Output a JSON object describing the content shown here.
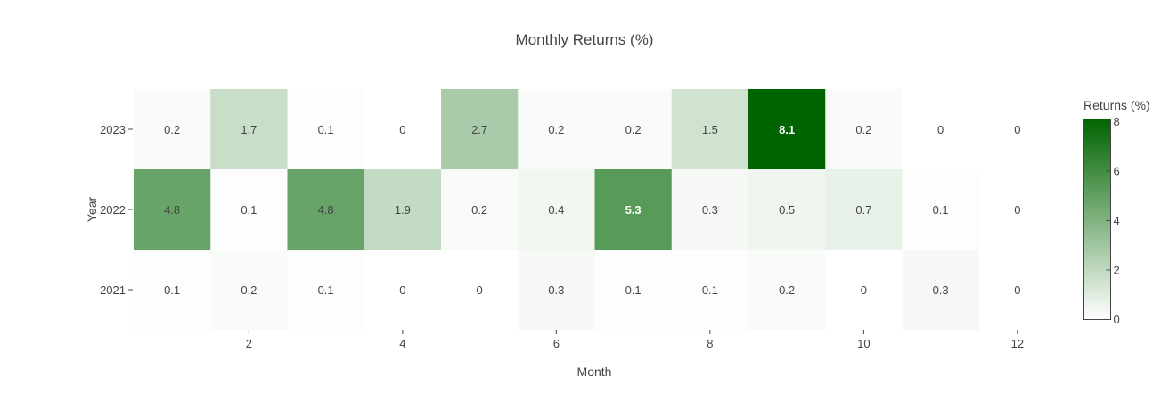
{
  "chart_data": {
    "type": "heatmap",
    "title": "Monthly Returns (%)",
    "xlabel": "Month",
    "ylabel": "Year",
    "x": [
      1,
      2,
      3,
      4,
      5,
      6,
      7,
      8,
      9,
      10,
      11,
      12
    ],
    "x_tick_labels": [
      "2",
      "4",
      "6",
      "8",
      "10",
      "12"
    ],
    "x_tick_values": [
      2,
      4,
      6,
      8,
      10,
      12
    ],
    "y": [
      "2023",
      "2022",
      "2021"
    ],
    "z": [
      [
        0.2,
        1.7,
        0.1,
        0,
        2.7,
        0.2,
        0.2,
        1.5,
        8.1,
        0.2,
        0,
        0
      ],
      [
        4.8,
        0.1,
        4.8,
        1.9,
        0.2,
        0.4,
        5.3,
        0.3,
        0.5,
        0.7,
        0.1,
        0
      ],
      [
        0.1,
        0.2,
        0.1,
        0,
        0,
        0.3,
        0.1,
        0.1,
        0.2,
        0,
        0.3,
        0
      ]
    ],
    "zrange": [
      0,
      8.1
    ],
    "colorscale": {
      "low": "#ffffff",
      "high": "#006400"
    },
    "colorbar": {
      "title": "Returns (%)",
      "tick_values": [
        0,
        2,
        4,
        6,
        8
      ],
      "tick_labels": [
        "0",
        "2",
        "4",
        "6",
        "8"
      ]
    },
    "grid": false,
    "legend": "colorbar-right"
  }
}
